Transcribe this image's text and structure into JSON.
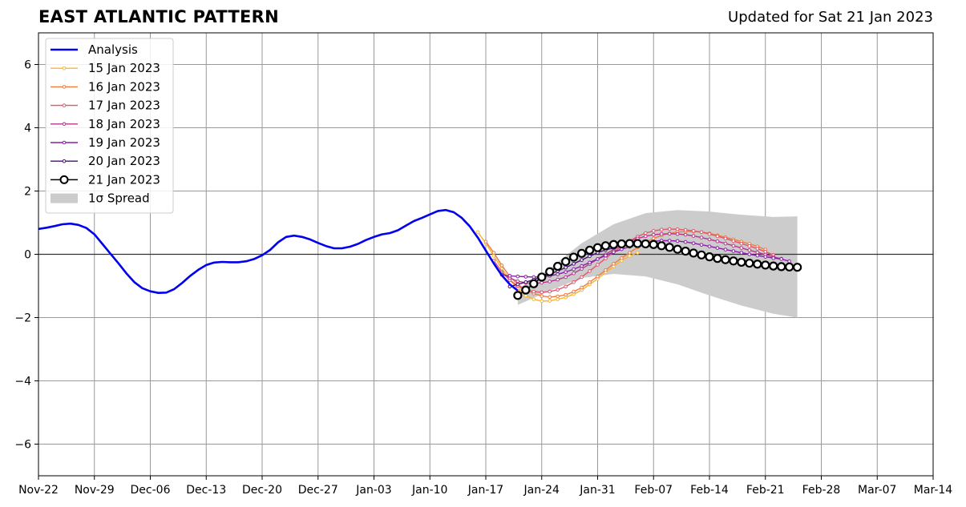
{
  "header": {
    "title": "EAST ATLANTIC PATTERN",
    "updated": "Updated for Sat 21 Jan 2023"
  },
  "colors": {
    "analysis": "#0000ee",
    "grid": "#999999",
    "spread": "#cccccc",
    "zero_line": "#333333"
  },
  "chart_data": {
    "type": "line",
    "title": "EAST ATLANTIC PATTERN",
    "xlabel": "",
    "ylabel": "",
    "xlim": [
      "2022-11-22",
      "2023-03-14"
    ],
    "ylim": [
      -7,
      7
    ],
    "grid": true,
    "legend_position": "top-left",
    "x_ticks": [
      "Nov-22",
      "Nov-29",
      "Dec-06",
      "Dec-13",
      "Dec-20",
      "Dec-27",
      "Jan-03",
      "Jan-10",
      "Jan-17",
      "Jan-24",
      "Jan-31",
      "Feb-07",
      "Feb-14",
      "Feb-21",
      "Feb-28",
      "Mar-07",
      "Mar-14"
    ],
    "y_ticks": [
      -6,
      -4,
      -2,
      0,
      2,
      4,
      6
    ],
    "analysis": {
      "name": "Analysis",
      "color": "#0000ee",
      "x": [
        "2022-11-22",
        "2022-11-23",
        "2022-11-24",
        "2022-11-25",
        "2022-11-26",
        "2022-11-27",
        "2022-11-28",
        "2022-11-29",
        "2022-11-30",
        "2022-12-01",
        "2022-12-02",
        "2022-12-03",
        "2022-12-04",
        "2022-12-05",
        "2022-12-06",
        "2022-12-07",
        "2022-12-08",
        "2022-12-09",
        "2022-12-10",
        "2022-12-11",
        "2022-12-12",
        "2022-12-13",
        "2022-12-14",
        "2022-12-15",
        "2022-12-16",
        "2022-12-17",
        "2022-12-18",
        "2022-12-19",
        "2022-12-20",
        "2022-12-21",
        "2022-12-22",
        "2022-12-23",
        "2022-12-24",
        "2022-12-25",
        "2022-12-26",
        "2022-12-27",
        "2022-12-28",
        "2022-12-29",
        "2022-12-30",
        "2022-12-31",
        "2023-01-01",
        "2023-01-02",
        "2023-01-03",
        "2023-01-04",
        "2023-01-05",
        "2023-01-06",
        "2023-01-07",
        "2023-01-08",
        "2023-01-09",
        "2023-01-10",
        "2023-01-11",
        "2023-01-12",
        "2023-01-13",
        "2023-01-14",
        "2023-01-15",
        "2023-01-16",
        "2023-01-17",
        "2023-01-18",
        "2023-01-19",
        "2023-01-20",
        "2023-01-21"
      ],
      "y": [
        0.8,
        0.84,
        0.89,
        0.95,
        0.97,
        0.93,
        0.83,
        0.63,
        0.33,
        0.02,
        -0.28,
        -0.6,
        -0.88,
        -1.07,
        -1.17,
        -1.22,
        -1.21,
        -1.1,
        -0.9,
        -0.68,
        -0.49,
        -0.34,
        -0.26,
        -0.24,
        -0.25,
        -0.25,
        -0.22,
        -0.15,
        -0.03,
        0.14,
        0.38,
        0.55,
        0.59,
        0.55,
        0.47,
        0.36,
        0.26,
        0.19,
        0.19,
        0.24,
        0.33,
        0.45,
        0.55,
        0.63,
        0.67,
        0.76,
        0.91,
        1.05,
        1.15,
        1.26,
        1.37,
        1.4,
        1.33,
        1.15,
        0.88,
        0.53,
        0.12,
        -0.29,
        -0.66,
        -0.95,
        -1.15
      ]
    },
    "spread": {
      "name": "1σ Spread",
      "x": [
        "2023-01-21",
        "2023-01-25",
        "2023-01-29",
        "2023-02-02",
        "2023-02-06",
        "2023-02-10",
        "2023-02-14",
        "2023-02-18",
        "2023-02-22",
        "2023-02-25"
      ],
      "upper": [
        -1.1,
        -0.45,
        0.35,
        0.95,
        1.3,
        1.4,
        1.35,
        1.25,
        1.18,
        1.2
      ],
      "lower": [
        -1.6,
        -1.15,
        -0.75,
        -0.62,
        -0.7,
        -0.95,
        -1.3,
        -1.62,
        -1.88,
        -2.0
      ]
    },
    "series": [
      {
        "name": "15 Jan 2023",
        "color": "#fbb430",
        "x": [
          "2023-01-16",
          "2023-01-17",
          "2023-01-18",
          "2023-01-19",
          "2023-01-20",
          "2023-01-21",
          "2023-01-22",
          "2023-01-23",
          "2023-01-24",
          "2023-01-25",
          "2023-01-26",
          "2023-01-27",
          "2023-01-28",
          "2023-01-29",
          "2023-01-30",
          "2023-01-31",
          "2023-02-01",
          "2023-02-02",
          "2023-02-03",
          "2023-02-04",
          "2023-02-05"
        ],
        "y": [
          0.7,
          0.35,
          -0.05,
          -0.45,
          -0.8,
          -1.1,
          -1.3,
          -1.42,
          -1.48,
          -1.47,
          -1.42,
          -1.36,
          -1.26,
          -1.13,
          -0.95,
          -0.78,
          -0.57,
          -0.38,
          -0.2,
          -0.05,
          0.05
        ]
      },
      {
        "name": "16 Jan 2023",
        "color": "#f07c3e",
        "x": [
          "2023-01-17",
          "2023-01-18",
          "2023-01-19",
          "2023-01-20",
          "2023-01-21",
          "2023-01-22",
          "2023-01-23",
          "2023-01-24",
          "2023-01-25",
          "2023-01-26",
          "2023-01-27",
          "2023-01-28",
          "2023-01-29",
          "2023-01-30",
          "2023-01-31",
          "2023-02-01",
          "2023-02-02",
          "2023-02-03",
          "2023-02-04",
          "2023-02-05",
          "2023-02-06",
          "2023-02-07",
          "2023-02-08",
          "2023-02-09",
          "2023-02-10",
          "2023-02-11",
          "2023-02-12",
          "2023-02-13",
          "2023-02-14",
          "2023-02-15",
          "2023-02-16",
          "2023-02-17",
          "2023-02-18",
          "2023-02-19",
          "2023-02-20",
          "2023-02-21"
        ],
        "y": [
          0.4,
          0.05,
          -0.35,
          -0.7,
          -0.95,
          -1.12,
          -1.24,
          -1.32,
          -1.35,
          -1.33,
          -1.28,
          -1.18,
          -1.05,
          -0.88,
          -0.7,
          -0.5,
          -0.3,
          -0.12,
          0.05,
          0.22,
          0.38,
          0.5,
          0.6,
          0.66,
          0.7,
          0.72,
          0.72,
          0.7,
          0.66,
          0.6,
          0.54,
          0.47,
          0.4,
          0.33,
          0.25,
          0.15
        ]
      },
      {
        "name": "17 Jan 2023",
        "color": "#e0556a",
        "x": [
          "2023-01-18",
          "2023-01-19",
          "2023-01-20",
          "2023-01-21",
          "2023-01-22",
          "2023-01-23",
          "2023-01-24",
          "2023-01-25",
          "2023-01-26",
          "2023-01-27",
          "2023-01-28",
          "2023-01-29",
          "2023-01-30",
          "2023-01-31",
          "2023-02-01",
          "2023-02-02",
          "2023-02-03",
          "2023-02-04",
          "2023-02-05",
          "2023-02-06",
          "2023-02-07",
          "2023-02-08",
          "2023-02-09",
          "2023-02-10",
          "2023-02-11",
          "2023-02-12",
          "2023-02-13",
          "2023-02-14",
          "2023-02-15",
          "2023-02-16",
          "2023-02-17",
          "2023-02-18",
          "2023-02-19",
          "2023-02-20",
          "2023-02-21",
          "2023-02-22"
        ],
        "y": [
          -0.2,
          -0.55,
          -0.82,
          -1.0,
          -1.12,
          -1.18,
          -1.2,
          -1.18,
          -1.12,
          -1.02,
          -0.88,
          -0.72,
          -0.53,
          -0.33,
          -0.13,
          0.07,
          0.25,
          0.42,
          0.56,
          0.67,
          0.74,
          0.78,
          0.8,
          0.79,
          0.77,
          0.74,
          0.7,
          0.64,
          0.57,
          0.5,
          0.42,
          0.34,
          0.26,
          0.18,
          0.08,
          -0.02
        ]
      },
      {
        "name": "18 Jan 2023",
        "color": "#b8358f",
        "x": [
          "2023-01-19",
          "2023-01-20",
          "2023-01-21",
          "2023-01-22",
          "2023-01-23",
          "2023-01-24",
          "2023-01-25",
          "2023-01-26",
          "2023-01-27",
          "2023-01-28",
          "2023-01-29",
          "2023-01-30",
          "2023-01-31",
          "2023-02-01",
          "2023-02-02",
          "2023-02-03",
          "2023-02-04",
          "2023-02-05",
          "2023-02-06",
          "2023-02-07",
          "2023-02-08",
          "2023-02-09",
          "2023-02-10",
          "2023-02-11",
          "2023-02-12",
          "2023-02-13",
          "2023-02-14",
          "2023-02-15",
          "2023-02-16",
          "2023-02-17",
          "2023-02-18",
          "2023-02-19",
          "2023-02-20",
          "2023-02-21",
          "2023-02-22",
          "2023-02-23"
        ],
        "y": [
          -0.6,
          -0.75,
          -0.85,
          -0.9,
          -0.92,
          -0.9,
          -0.86,
          -0.8,
          -0.72,
          -0.6,
          -0.46,
          -0.31,
          -0.15,
          0.0,
          0.15,
          0.28,
          0.4,
          0.5,
          0.57,
          0.62,
          0.64,
          0.65,
          0.64,
          0.62,
          0.58,
          0.53,
          0.47,
          0.41,
          0.34,
          0.27,
          0.2,
          0.13,
          0.06,
          -0.01,
          -0.08,
          -0.14
        ]
      },
      {
        "name": "19 Jan 2023",
        "color": "#8a1ea8",
        "x": [
          "2023-01-19",
          "2023-01-20",
          "2023-01-21",
          "2023-01-22",
          "2023-01-23",
          "2023-01-24",
          "2023-01-25",
          "2023-01-26",
          "2023-01-27",
          "2023-01-28",
          "2023-01-29",
          "2023-01-30",
          "2023-01-31",
          "2023-02-01",
          "2023-02-02",
          "2023-02-03",
          "2023-02-04",
          "2023-02-05",
          "2023-02-06",
          "2023-02-07",
          "2023-02-08",
          "2023-02-09",
          "2023-02-10",
          "2023-02-11",
          "2023-02-12",
          "2023-02-13",
          "2023-02-14",
          "2023-02-15",
          "2023-02-16",
          "2023-02-17",
          "2023-02-18",
          "2023-02-19",
          "2023-02-20",
          "2023-02-21",
          "2023-02-22",
          "2023-02-23",
          "2023-02-24"
        ],
        "y": [
          -0.65,
          -0.68,
          -0.7,
          -0.71,
          -0.72,
          -0.71,
          -0.68,
          -0.63,
          -0.56,
          -0.47,
          -0.37,
          -0.26,
          -0.15,
          -0.04,
          0.07,
          0.16,
          0.24,
          0.31,
          0.37,
          0.41,
          0.43,
          0.43,
          0.42,
          0.39,
          0.35,
          0.3,
          0.25,
          0.2,
          0.15,
          0.1,
          0.05,
          0.0,
          -0.04,
          -0.08,
          -0.12,
          -0.15,
          -0.22
        ]
      },
      {
        "name": "20 Jan 2023",
        "color": "#4a0c7a",
        "x": [
          "2023-01-20",
          "2023-01-21",
          "2023-01-22",
          "2023-01-23",
          "2023-01-24",
          "2023-01-25",
          "2023-01-26",
          "2023-01-27",
          "2023-01-28",
          "2023-01-29",
          "2023-01-30",
          "2023-01-31",
          "2023-02-01",
          "2023-02-02"
        ],
        "y": [
          -1.02,
          -0.95,
          -0.88,
          -0.8,
          -0.72,
          -0.63,
          -0.53,
          -0.42,
          -0.3,
          -0.18,
          -0.06,
          0.05,
          0.14,
          0.2
        ]
      },
      {
        "name": "21 Jan 2023",
        "color": "#000000",
        "marker": "open-circle",
        "x": [
          "2023-01-21",
          "2023-01-22",
          "2023-01-23",
          "2023-01-24",
          "2023-01-25",
          "2023-01-26",
          "2023-01-27",
          "2023-01-28",
          "2023-01-29",
          "2023-01-30",
          "2023-01-31",
          "2023-02-01",
          "2023-02-02",
          "2023-02-03",
          "2023-02-04",
          "2023-02-05",
          "2023-02-06",
          "2023-02-07",
          "2023-02-08",
          "2023-02-09",
          "2023-02-10",
          "2023-02-11",
          "2023-02-12",
          "2023-02-13",
          "2023-02-14",
          "2023-02-15",
          "2023-02-16",
          "2023-02-17",
          "2023-02-18",
          "2023-02-19",
          "2023-02-20",
          "2023-02-21",
          "2023-02-22",
          "2023-02-23",
          "2023-02-24",
          "2023-02-25"
        ],
        "y": [
          -1.3,
          -1.13,
          -0.93,
          -0.72,
          -0.55,
          -0.38,
          -0.23,
          -0.09,
          0.03,
          0.13,
          0.21,
          0.27,
          0.31,
          0.33,
          0.34,
          0.34,
          0.33,
          0.31,
          0.27,
          0.22,
          0.16,
          0.1,
          0.04,
          -0.02,
          -0.08,
          -0.13,
          -0.17,
          -0.21,
          -0.25,
          -0.28,
          -0.31,
          -0.34,
          -0.37,
          -0.39,
          -0.4,
          -0.41
        ]
      }
    ],
    "legend": [
      "Analysis",
      "15 Jan 2023",
      "16 Jan 2023",
      "17 Jan 2023",
      "18 Jan 2023",
      "19 Jan 2023",
      "20 Jan 2023",
      "21 Jan 2023",
      "1σ Spread"
    ]
  }
}
